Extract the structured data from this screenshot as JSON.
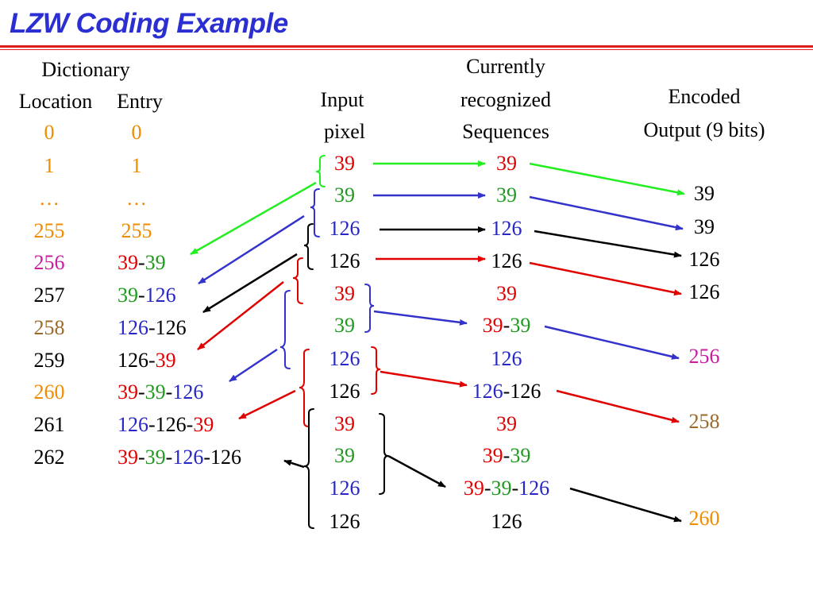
{
  "title": "LZW Coding Example",
  "colors": {
    "title": "#2b2fd1",
    "rule": "#e01b1b",
    "r": "#e00000",
    "g": "#1f9a1f",
    "b": "#2727c7",
    "k": "#000000",
    "o": "#f08c00",
    "m": "#c81ea0",
    "br": "#9a6a2a",
    "arrow_green": "#22ee22",
    "arrow_blue": "#3333cc",
    "arrow_red": "#e00000",
    "arrow_black": "#000000"
  },
  "headers": {
    "dictionary": "Dictionary",
    "location": "Location",
    "entry": "Entry",
    "input_line1": "Input",
    "input_line2": "pixel",
    "current_line1": "Currently",
    "current_line2": "recognized",
    "current_line3": "Sequences",
    "encoded_line1": "Encoded",
    "encoded_line2": "Output (9 bits)"
  },
  "dictionary": [
    {
      "location": [
        {
          "t": "0",
          "c": "o"
        }
      ],
      "entry": [
        {
          "t": "0",
          "c": "o"
        }
      ]
    },
    {
      "location": [
        {
          "t": "1",
          "c": "o"
        }
      ],
      "entry": [
        {
          "t": "1",
          "c": "o"
        }
      ]
    },
    {
      "location": [
        {
          "t": "…",
          "c": "o"
        }
      ],
      "entry": [
        {
          "t": "…",
          "c": "o"
        }
      ]
    },
    {
      "location": [
        {
          "t": "255",
          "c": "o"
        }
      ],
      "entry": [
        {
          "t": "255",
          "c": "o"
        }
      ]
    },
    {
      "location": [
        {
          "t": "256",
          "c": "m"
        }
      ],
      "entry": [
        {
          "t": "39",
          "c": "r"
        },
        {
          "t": "-",
          "c": "k"
        },
        {
          "t": "39",
          "c": "g"
        }
      ]
    },
    {
      "location": [
        {
          "t": "257",
          "c": "k"
        }
      ],
      "entry": [
        {
          "t": "39",
          "c": "g"
        },
        {
          "t": "-",
          "c": "k"
        },
        {
          "t": "126",
          "c": "b"
        }
      ]
    },
    {
      "location": [
        {
          "t": "258",
          "c": "br"
        }
      ],
      "entry": [
        {
          "t": "126",
          "c": "b"
        },
        {
          "t": "-126",
          "c": "k"
        }
      ]
    },
    {
      "location": [
        {
          "t": "259",
          "c": "k"
        }
      ],
      "entry": [
        {
          "t": "126-",
          "c": "k"
        },
        {
          "t": "39",
          "c": "r"
        }
      ]
    },
    {
      "location": [
        {
          "t": "260",
          "c": "o"
        }
      ],
      "entry": [
        {
          "t": "39",
          "c": "r"
        },
        {
          "t": "-",
          "c": "k"
        },
        {
          "t": "39",
          "c": "g"
        },
        {
          "t": "-",
          "c": "k"
        },
        {
          "t": "126",
          "c": "b"
        }
      ]
    },
    {
      "location": [
        {
          "t": "261",
          "c": "k"
        }
      ],
      "entry": [
        {
          "t": "126",
          "c": "b"
        },
        {
          "t": "-126-",
          "c": "k"
        },
        {
          "t": "39",
          "c": "r"
        }
      ]
    },
    {
      "location": [
        {
          "t": "262",
          "c": "k"
        }
      ],
      "entry": [
        {
          "t": "39",
          "c": "r"
        },
        {
          "t": "-",
          "c": "k"
        },
        {
          "t": "39",
          "c": "g"
        },
        {
          "t": "-",
          "c": "k"
        },
        {
          "t": "126",
          "c": "b"
        },
        {
          "t": "-126",
          "c": "k"
        }
      ]
    }
  ],
  "input_pixels": [
    {
      "t": "39",
      "c": "r"
    },
    {
      "t": "39",
      "c": "g"
    },
    {
      "t": "126",
      "c": "b"
    },
    {
      "t": "126",
      "c": "k"
    },
    {
      "t": "39",
      "c": "r"
    },
    {
      "t": "39",
      "c": "g"
    },
    {
      "t": "126",
      "c": "b"
    },
    {
      "t": "126",
      "c": "k"
    },
    {
      "t": "39",
      "c": "r"
    },
    {
      "t": "39",
      "c": "g"
    },
    {
      "t": "126",
      "c": "b"
    },
    {
      "t": "126",
      "c": "k"
    }
  ],
  "sequences": [
    [
      {
        "t": "39",
        "c": "r"
      }
    ],
    [
      {
        "t": "39",
        "c": "g"
      }
    ],
    [
      {
        "t": "126",
        "c": "b"
      }
    ],
    [
      {
        "t": "126",
        "c": "k"
      }
    ],
    [
      {
        "t": "39",
        "c": "r"
      }
    ],
    [
      {
        "t": "39",
        "c": "r"
      },
      {
        "t": "-",
        "c": "k"
      },
      {
        "t": "39",
        "c": "g"
      }
    ],
    [
      {
        "t": "126",
        "c": "b"
      }
    ],
    [
      {
        "t": "126",
        "c": "b"
      },
      {
        "t": "-126",
        "c": "k"
      }
    ],
    [
      {
        "t": "39",
        "c": "r"
      }
    ],
    [
      {
        "t": "39",
        "c": "r"
      },
      {
        "t": "-",
        "c": "k"
      },
      {
        "t": "39",
        "c": "g"
      }
    ],
    [
      {
        "t": "39",
        "c": "r"
      },
      {
        "t": "-",
        "c": "k"
      },
      {
        "t": "39",
        "c": "g"
      },
      {
        "t": "-",
        "c": "k"
      },
      {
        "t": "126",
        "c": "b"
      }
    ],
    [
      {
        "t": "126",
        "c": "k"
      }
    ]
  ],
  "encoded_output": [
    {
      "t": "39",
      "c": "k"
    },
    {
      "t": "39",
      "c": "k"
    },
    {
      "t": "126",
      "c": "k"
    },
    {
      "t": "126",
      "c": "k"
    },
    {
      "t": "256",
      "c": "m"
    },
    {
      "t": "258",
      "c": "br"
    },
    {
      "t": "260",
      "c": "o"
    }
  ]
}
